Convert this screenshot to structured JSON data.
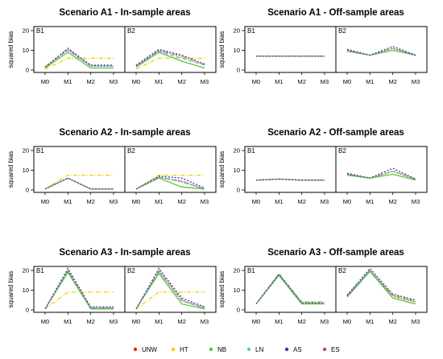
{
  "series_meta": [
    {
      "name": "UNW",
      "color": "#e4271e",
      "dash": "1,2"
    },
    {
      "name": "HT",
      "color": "#f0d000",
      "dash": "5,2,1,2"
    },
    {
      "name": "NB",
      "color": "#5fc23a",
      "dash": ""
    },
    {
      "name": "LN",
      "color": "#60c6c8",
      "dash": "6,2"
    },
    {
      "name": "AS",
      "color": "#35419a",
      "dash": "2,2"
    },
    {
      "name": "ES",
      "color": "#c0427f",
      "dash": "1,3"
    }
  ],
  "chart_data": [
    {
      "type": "line",
      "title": "Scenario A1 - In-sample areas",
      "ylabel": "squared bias",
      "ylim": [
        0,
        20
      ],
      "yticks": [
        0,
        10,
        20
      ],
      "categories": [
        "M0",
        "M1",
        "M2",
        "M3"
      ],
      "panels": [
        {
          "label": "B1",
          "series": [
            {
              "name": "UNW",
              "values": [
                1.5,
                10.5,
                2,
                2
              ]
            },
            {
              "name": "HT",
              "values": [
                0.5,
                6,
                6,
                6
              ]
            },
            {
              "name": "NB",
              "values": [
                1,
                9,
                1,
                1
              ]
            },
            {
              "name": "LN",
              "values": [
                1.5,
                10,
                2,
                2
              ]
            },
            {
              "name": "AS",
              "values": [
                1.5,
                11,
                2.5,
                2.5
              ]
            },
            {
              "name": "ES",
              "values": [
                1.5,
                10.5,
                2,
                2
              ]
            }
          ]
        },
        {
          "label": "B2",
          "series": [
            {
              "name": "UNW",
              "values": [
                2,
                10,
                7,
                3
              ]
            },
            {
              "name": "HT",
              "values": [
                0.5,
                6,
                6,
                6
              ]
            },
            {
              "name": "NB",
              "values": [
                1.5,
                9,
                4.5,
                1
              ]
            },
            {
              "name": "LN",
              "values": [
                2,
                9.5,
                6,
                2.5
              ]
            },
            {
              "name": "AS",
              "values": [
                2.5,
                10.5,
                7.5,
                3
              ]
            },
            {
              "name": "ES",
              "values": [
                2,
                10,
                7,
                3
              ]
            }
          ]
        }
      ]
    },
    {
      "type": "line",
      "title": "Scenario A1 - Off-sample areas",
      "ylabel": "squared bias",
      "ylim": [
        0,
        20
      ],
      "yticks": [
        0,
        10,
        20
      ],
      "categories": [
        "M0",
        "M1",
        "M2",
        "M3"
      ],
      "panels": [
        {
          "label": "B1",
          "series": [
            {
              "name": "UNW",
              "values": [
                7,
                7,
                7,
                7
              ]
            },
            {
              "name": "HT",
              "values": [
                7,
                7,
                7,
                7
              ]
            },
            {
              "name": "NB",
              "values": [
                7,
                7,
                7,
                7
              ]
            },
            {
              "name": "LN",
              "values": [
                7,
                7,
                7,
                7
              ]
            },
            {
              "name": "AS",
              "values": [
                7,
                7,
                7,
                7
              ]
            },
            {
              "name": "ES",
              "values": [
                7,
                7,
                7,
                7
              ]
            }
          ]
        },
        {
          "label": "B2",
          "series": [
            {
              "name": "UNW",
              "values": [
                10,
                7.5,
                11,
                7.5
              ]
            },
            {
              "name": "HT",
              "values": [
                10,
                7.5,
                11,
                7.5
              ]
            },
            {
              "name": "NB",
              "values": [
                9.5,
                7.5,
                10,
                7.5
              ]
            },
            {
              "name": "LN",
              "values": [
                10,
                7.5,
                11,
                7.5
              ]
            },
            {
              "name": "AS",
              "values": [
                10.5,
                7.5,
                12,
                7.5
              ]
            },
            {
              "name": "ES",
              "values": [
                10,
                7.5,
                11,
                7.5
              ]
            }
          ]
        }
      ]
    },
    {
      "type": "line",
      "title": "Scenario A2 - In-sample areas",
      "ylabel": "squared bias",
      "ylim": [
        0,
        20
      ],
      "yticks": [
        0,
        10,
        20
      ],
      "categories": [
        "M0",
        "M1",
        "M2",
        "M3"
      ],
      "panels": [
        {
          "label": "B1",
          "series": [
            {
              "name": "UNW",
              "values": [
                0.5,
                6,
                0.5,
                0.5
              ]
            },
            {
              "name": "HT",
              "values": [
                0.5,
                7.5,
                7.5,
                7.5
              ]
            },
            {
              "name": "NB",
              "values": [
                0.5,
                6,
                0.5,
                0.5
              ]
            },
            {
              "name": "LN",
              "values": [
                0.5,
                6,
                0.5,
                0.5
              ]
            },
            {
              "name": "AS",
              "values": [
                0.5,
                6,
                0.5,
                0.5
              ]
            },
            {
              "name": "ES",
              "values": [
                0.5,
                6,
                0.5,
                0.5
              ]
            }
          ]
        },
        {
          "label": "B2",
          "series": [
            {
              "name": "UNW",
              "values": [
                0.5,
                6.5,
                4.5,
                0.5
              ]
            },
            {
              "name": "HT",
              "values": [
                0.5,
                7.5,
                7.5,
                7.5
              ]
            },
            {
              "name": "NB",
              "values": [
                0.5,
                6,
                1.5,
                0.5
              ]
            },
            {
              "name": "LN",
              "values": [
                0.5,
                6.5,
                4,
                0.5
              ]
            },
            {
              "name": "AS",
              "values": [
                0.5,
                7,
                6,
                1
              ]
            },
            {
              "name": "ES",
              "values": [
                0.5,
                6.5,
                4.5,
                0.5
              ]
            }
          ]
        }
      ]
    },
    {
      "type": "line",
      "title": "Scenario A2 - Off-sample areas",
      "ylabel": "squared bias",
      "ylim": [
        0,
        20
      ],
      "yticks": [
        0,
        10,
        20
      ],
      "categories": [
        "M0",
        "M1",
        "M2",
        "M3"
      ],
      "panels": [
        {
          "label": "B1",
          "series": [
            {
              "name": "UNW",
              "values": [
                5,
                5.5,
                5,
                5
              ]
            },
            {
              "name": "HT",
              "values": [
                5,
                5.5,
                5,
                5
              ]
            },
            {
              "name": "NB",
              "values": [
                5,
                5.5,
                5,
                5
              ]
            },
            {
              "name": "LN",
              "values": [
                5,
                5.5,
                5,
                5
              ]
            },
            {
              "name": "AS",
              "values": [
                5,
                5.5,
                5,
                5
              ]
            },
            {
              "name": "ES",
              "values": [
                5,
                5.5,
                5,
                5
              ]
            }
          ]
        },
        {
          "label": "B2",
          "series": [
            {
              "name": "UNW",
              "values": [
                8,
                6,
                9.5,
                5.5
              ]
            },
            {
              "name": "HT",
              "values": [
                8,
                6,
                9.5,
                5.5
              ]
            },
            {
              "name": "NB",
              "values": [
                7.5,
                6,
                8,
                5
              ]
            },
            {
              "name": "LN",
              "values": [
                8,
                6,
                9.5,
                5.5
              ]
            },
            {
              "name": "AS",
              "values": [
                8.5,
                6,
                11,
                5.5
              ]
            },
            {
              "name": "ES",
              "values": [
                8,
                6,
                9.5,
                5.5
              ]
            }
          ]
        }
      ]
    },
    {
      "type": "line",
      "title": "Scenario A3 - In-sample areas",
      "ylabel": "squared bias",
      "ylim": [
        0,
        20
      ],
      "yticks": [
        0,
        10,
        20
      ],
      "categories": [
        "M0",
        "M1",
        "M2",
        "M3"
      ],
      "panels": [
        {
          "label": "B1",
          "series": [
            {
              "name": "UNW",
              "values": [
                0.5,
                20,
                1,
                1
              ]
            },
            {
              "name": "HT",
              "values": [
                0.5,
                9,
                9,
                9
              ]
            },
            {
              "name": "NB",
              "values": [
                0.5,
                19,
                0.5,
                0.5
              ]
            },
            {
              "name": "LN",
              "values": [
                0.5,
                20,
                1,
                1
              ]
            },
            {
              "name": "AS",
              "values": [
                0.5,
                21,
                1.5,
                1.5
              ]
            },
            {
              "name": "ES",
              "values": [
                0.5,
                20,
                1,
                1
              ]
            }
          ]
        },
        {
          "label": "B2",
          "series": [
            {
              "name": "UNW",
              "values": [
                0.5,
                20,
                5,
                1
              ]
            },
            {
              "name": "HT",
              "values": [
                0.5,
                9,
                9,
                9
              ]
            },
            {
              "name": "NB",
              "values": [
                0.5,
                18.5,
                3,
                0.5
              ]
            },
            {
              "name": "LN",
              "values": [
                0.5,
                19.5,
                4.5,
                1
              ]
            },
            {
              "name": "AS",
              "values": [
                0.5,
                21,
                6,
                1.5
              ]
            },
            {
              "name": "ES",
              "values": [
                0.5,
                20,
                5,
                1
              ]
            }
          ]
        }
      ]
    },
    {
      "type": "line",
      "title": "Scenario A3 - Off-sample areas",
      "ylabel": "squared bias",
      "ylim": [
        0,
        20
      ],
      "yticks": [
        0,
        10,
        20
      ],
      "categories": [
        "M0",
        "M1",
        "M2",
        "M3"
      ],
      "panels": [
        {
          "label": "B1",
          "series": [
            {
              "name": "UNW",
              "values": [
                3,
                18,
                3.5,
                3.5
              ]
            },
            {
              "name": "HT",
              "values": [
                3,
                18,
                3.5,
                3.5
              ]
            },
            {
              "name": "NB",
              "values": [
                3,
                17.5,
                3,
                3
              ]
            },
            {
              "name": "LN",
              "values": [
                3,
                18.5,
                4,
                4
              ]
            },
            {
              "name": "AS",
              "values": [
                3,
                18,
                3.5,
                3.5
              ]
            },
            {
              "name": "ES",
              "values": [
                3,
                18,
                3.5,
                3.5
              ]
            }
          ]
        },
        {
          "label": "B2",
          "series": [
            {
              "name": "UNW",
              "values": [
                7,
                20,
                7,
                4
              ]
            },
            {
              "name": "HT",
              "values": [
                7,
                20,
                7,
                4
              ]
            },
            {
              "name": "NB",
              "values": [
                6.5,
                19.5,
                6,
                3
              ]
            },
            {
              "name": "LN",
              "values": [
                7.5,
                20,
                7.5,
                4.5
              ]
            },
            {
              "name": "AS",
              "values": [
                7.5,
                21,
                8,
                5
              ]
            },
            {
              "name": "ES",
              "values": [
                7,
                20,
                7,
                4
              ]
            }
          ]
        }
      ]
    }
  ]
}
